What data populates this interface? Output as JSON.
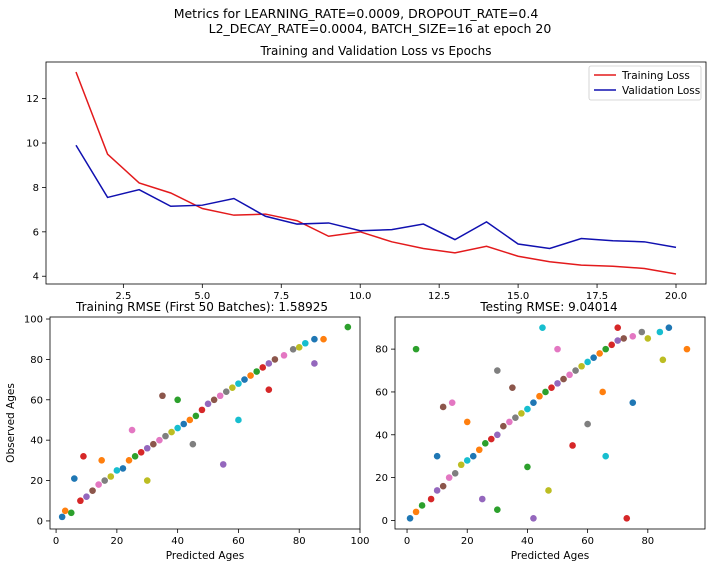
{
  "figure": {
    "suptitle_line1": "Metrics for LEARNING_RATE=0.0009, DROPOUT_RATE=0.4",
    "suptitle_line2": "L2_DECAY_RATE=0.0004, BATCH_SIZE=16 at epoch 20"
  },
  "chart_data": [
    {
      "type": "line",
      "title": "Training and Validation Loss vs Epochs",
      "xlabel": "",
      "ylabel": "",
      "xlim": [
        0.05,
        20.95
      ],
      "ylim": [
        3.65,
        13.65
      ],
      "xticks": [
        2.5,
        5.0,
        7.5,
        10.0,
        12.5,
        15.0,
        17.5,
        20.0
      ],
      "xtick_labels": [
        "2.5",
        "5.0",
        "7.5",
        "10.0",
        "12.5",
        "15.0",
        "17.5",
        "20.0"
      ],
      "yticks": [
        4,
        6,
        8,
        10,
        12
      ],
      "ytick_labels": [
        "4",
        "6",
        "8",
        "10",
        "12"
      ],
      "x": [
        1,
        2,
        3,
        4,
        5,
        6,
        7,
        8,
        9,
        10,
        11,
        12,
        13,
        14,
        15,
        16,
        17,
        18,
        19,
        20
      ],
      "series": [
        {
          "name": "Training Loss",
          "color": "#e31a1c",
          "values": [
            13.2,
            9.5,
            8.2,
            7.75,
            7.05,
            6.75,
            6.8,
            6.5,
            5.8,
            6.0,
            5.55,
            5.25,
            5.05,
            5.35,
            4.9,
            4.65,
            4.5,
            4.45,
            4.35,
            4.1
          ]
        },
        {
          "name": "Validation Loss",
          "color": "#1010b0",
          "values": [
            9.9,
            7.55,
            7.9,
            7.15,
            7.2,
            7.5,
            6.7,
            6.35,
            6.4,
            6.05,
            6.1,
            6.35,
            5.65,
            6.45,
            5.45,
            5.25,
            5.7,
            5.6,
            5.55,
            5.3
          ]
        }
      ],
      "legend": "top-right",
      "grid": false
    },
    {
      "type": "scatter",
      "title": "Training RMSE (First 50 Batches): 1.58925",
      "xlabel": "Predicted Ages",
      "ylabel": "Observed Ages",
      "xlim": [
        -2,
        100
      ],
      "ylim": [
        -4,
        101
      ],
      "xticks": [
        0,
        20,
        40,
        60,
        80,
        100
      ],
      "xtick_labels": [
        "0",
        "20",
        "40",
        "60",
        "80",
        "100"
      ],
      "yticks": [
        0,
        20,
        40,
        60,
        80,
        100
      ],
      "ytick_labels": [
        "0",
        "20",
        "40",
        "60",
        "80",
        "100"
      ],
      "grid": false,
      "points": [
        [
          2,
          2
        ],
        [
          3,
          5
        ],
        [
          5,
          4
        ],
        [
          8,
          10
        ],
        [
          10,
          12
        ],
        [
          12,
          15
        ],
        [
          14,
          18
        ],
        [
          16,
          20
        ],
        [
          18,
          22
        ],
        [
          20,
          25
        ],
        [
          22,
          26
        ],
        [
          24,
          30
        ],
        [
          26,
          32
        ],
        [
          28,
          34
        ],
        [
          30,
          36
        ],
        [
          32,
          38
        ],
        [
          34,
          40
        ],
        [
          36,
          42
        ],
        [
          38,
          44
        ],
        [
          40,
          46
        ],
        [
          42,
          48
        ],
        [
          44,
          50
        ],
        [
          46,
          52
        ],
        [
          48,
          55
        ],
        [
          50,
          58
        ],
        [
          52,
          60
        ],
        [
          54,
          62
        ],
        [
          56,
          64
        ],
        [
          58,
          66
        ],
        [
          60,
          68
        ],
        [
          62,
          70
        ],
        [
          64,
          72
        ],
        [
          66,
          74
        ],
        [
          68,
          76
        ],
        [
          70,
          78
        ],
        [
          72,
          80
        ],
        [
          75,
          82
        ],
        [
          78,
          85
        ],
        [
          80,
          86
        ],
        [
          82,
          88
        ],
        [
          85,
          90
        ],
        [
          88,
          90
        ],
        [
          96,
          96
        ],
        [
          9,
          32
        ],
        [
          55,
          28
        ],
        [
          35,
          62
        ],
        [
          25,
          45
        ],
        [
          45,
          38
        ],
        [
          30,
          20
        ],
        [
          60,
          50
        ],
        [
          6,
          21
        ],
        [
          15,
          30
        ],
        [
          40,
          60
        ],
        [
          70,
          65
        ],
        [
          85,
          78
        ]
      ]
    },
    {
      "type": "scatter",
      "title": "Testing RMSE: 9.04014",
      "xlabel": "Predicted Ages",
      "ylabel": "",
      "xlim": [
        -4,
        99
      ],
      "ylim": [
        -4,
        95
      ],
      "xticks": [
        0,
        20,
        40,
        60,
        80
      ],
      "xtick_labels": [
        "0",
        "20",
        "40",
        "60",
        "80"
      ],
      "yticks": [
        0,
        20,
        40,
        60,
        80
      ],
      "ytick_labels": [
        "0",
        "20",
        "40",
        "60",
        "80"
      ],
      "grid": false,
      "points": [
        [
          1,
          1
        ],
        [
          3,
          4
        ],
        [
          5,
          7
        ],
        [
          8,
          10
        ],
        [
          10,
          14
        ],
        [
          12,
          16
        ],
        [
          14,
          20
        ],
        [
          16,
          22
        ],
        [
          18,
          26
        ],
        [
          20,
          28
        ],
        [
          22,
          30
        ],
        [
          24,
          33
        ],
        [
          26,
          36
        ],
        [
          28,
          38
        ],
        [
          30,
          40
        ],
        [
          32,
          44
        ],
        [
          34,
          46
        ],
        [
          36,
          48
        ],
        [
          38,
          50
        ],
        [
          40,
          52
        ],
        [
          42,
          55
        ],
        [
          44,
          58
        ],
        [
          46,
          60
        ],
        [
          48,
          62
        ],
        [
          50,
          64
        ],
        [
          52,
          66
        ],
        [
          54,
          68
        ],
        [
          56,
          70
        ],
        [
          58,
          72
        ],
        [
          60,
          74
        ],
        [
          62,
          76
        ],
        [
          64,
          78
        ],
        [
          66,
          80
        ],
        [
          68,
          82
        ],
        [
          70,
          84
        ],
        [
          72,
          85
        ],
        [
          75,
          86
        ],
        [
          78,
          88
        ],
        [
          80,
          85
        ],
        [
          84,
          88
        ],
        [
          87,
          90
        ],
        [
          93,
          80
        ],
        [
          3,
          80
        ],
        [
          73,
          1
        ],
        [
          42,
          1
        ],
        [
          12,
          53
        ],
        [
          15,
          55
        ],
        [
          30,
          70
        ],
        [
          47,
          14
        ],
        [
          66,
          30
        ],
        [
          75,
          55
        ],
        [
          20,
          46
        ],
        [
          40,
          25
        ],
        [
          55,
          35
        ],
        [
          25,
          10
        ],
        [
          35,
          62
        ],
        [
          50,
          80
        ],
        [
          60,
          45
        ],
        [
          85,
          75
        ],
        [
          45,
          90
        ],
        [
          10,
          30
        ],
        [
          65,
          60
        ],
        [
          30,
          5
        ],
        [
          70,
          90
        ]
      ]
    }
  ],
  "colors": [
    "#1f77b4",
    "#ff7f0e",
    "#2ca02c",
    "#d62728",
    "#9467bd",
    "#8c564b",
    "#e377c2",
    "#7f7f7f",
    "#bcbd22",
    "#17becf"
  ]
}
